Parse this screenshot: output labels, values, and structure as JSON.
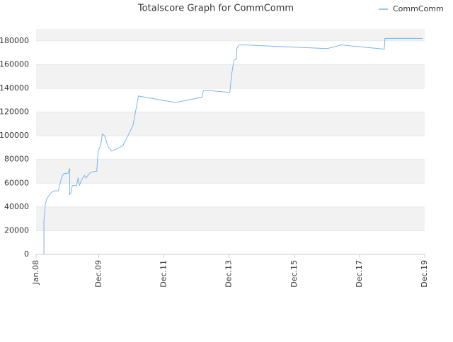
{
  "chart_data": {
    "type": "line",
    "title": "Totalscore Graph for CommComm",
    "x": [
      2008.24,
      2008.24,
      2008.28,
      2008.33,
      2008.41,
      2008.48,
      2008.57,
      2008.68,
      2008.72,
      2008.79,
      2008.85,
      2008.98,
      2009.03,
      2009.03,
      2009.07,
      2009.11,
      2009.24,
      2009.29,
      2009.33,
      2009.38,
      2009.48,
      2009.53,
      2009.66,
      2009.79,
      2009.86,
      2009.9,
      2009.99,
      2010.03,
      2010.1,
      2010.21,
      2010.32,
      2010.66,
      2010.97,
      2011.14,
      2012.28,
      2013.09,
      2013.13,
      2013.33,
      2013.94,
      2014.0,
      2014.07,
      2014.14,
      2014.16,
      2014.22,
      2014.42,
      2015.62,
      2016.93,
      2017.37,
      2018.68,
      2018.7,
      2019.86
    ],
    "series": [
      {
        "name": "CommComm",
        "color": "#7cb5ec",
        "values": [
          0,
          28000,
          42000,
          47000,
          50000,
          52500,
          53500,
          53500,
          58000,
          65500,
          68000,
          68500,
          72500,
          50500,
          52000,
          58000,
          58000,
          64500,
          58000,
          62000,
          66500,
          64500,
          69000,
          70000,
          70000,
          86500,
          93000,
          101500,
          100000,
          90500,
          87000,
          91500,
          108500,
          133500,
          128000,
          132500,
          138000,
          138000,
          136500,
          152000,
          164000,
          164500,
          173500,
          176500,
          176500,
          175000,
          173500,
          176500,
          173000,
          182000,
          182000
        ]
      }
    ],
    "xlim": [
      2008.0,
      2019.92
    ],
    "xticks": [
      {
        "value": 2008.0,
        "label": "Jan.08"
      },
      {
        "value": 2009.92,
        "label": "Dec.09"
      },
      {
        "value": 2011.92,
        "label": "Dec.11"
      },
      {
        "value": 2013.92,
        "label": "Dec.13"
      },
      {
        "value": 2015.92,
        "label": "Dec.15"
      },
      {
        "value": 2017.92,
        "label": "Dec.17"
      },
      {
        "value": 2019.92,
        "label": "Dec.19"
      }
    ],
    "ylim": [
      0,
      190000
    ],
    "yticks": [
      0,
      20000,
      40000,
      60000,
      80000,
      100000,
      120000,
      140000,
      160000,
      180000
    ],
    "grid": true,
    "legend": "top-right"
  }
}
